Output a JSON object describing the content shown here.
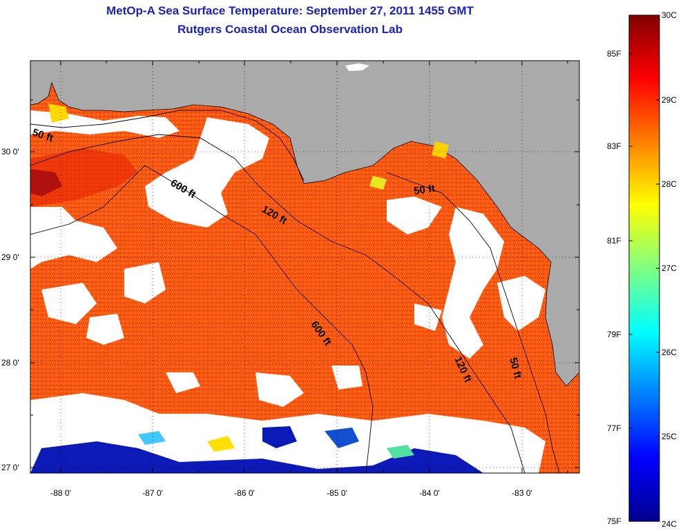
{
  "title": "MetOp-A Sea Surface Temperature:  September 27, 2011 1455 GMT",
  "subtitle": "Rutgers Coastal Ocean Observation Lab",
  "map": {
    "lon_range": [
      -88.35,
      -82.35
    ],
    "lat_range": [
      26.95,
      30.85
    ],
    "x_ticks": [
      "-88 0'",
      "-87 0'",
      "-86 0'",
      "-85 0'",
      "-84 0'",
      "-83 0'"
    ],
    "y_ticks": [
      "30 0'",
      "29 0'",
      "28 0'",
      "27 0'"
    ],
    "contour_labels": [
      "50 ft",
      "600 ft",
      "120 ft",
      "50 ft",
      "600 ft",
      "120 ft",
      "50 ft"
    ],
    "land_color": "#aaaaaa",
    "cloud_color": "#ffffff"
  },
  "colorbar": {
    "f_labels": [
      "85F",
      "83F",
      "81F",
      "79F",
      "77F",
      "75F"
    ],
    "c_labels": [
      "30C",
      "29C",
      "28C",
      "27C",
      "26C",
      "25C",
      "24C"
    ],
    "colormap": "jet",
    "c_range": [
      24,
      30
    ]
  }
}
